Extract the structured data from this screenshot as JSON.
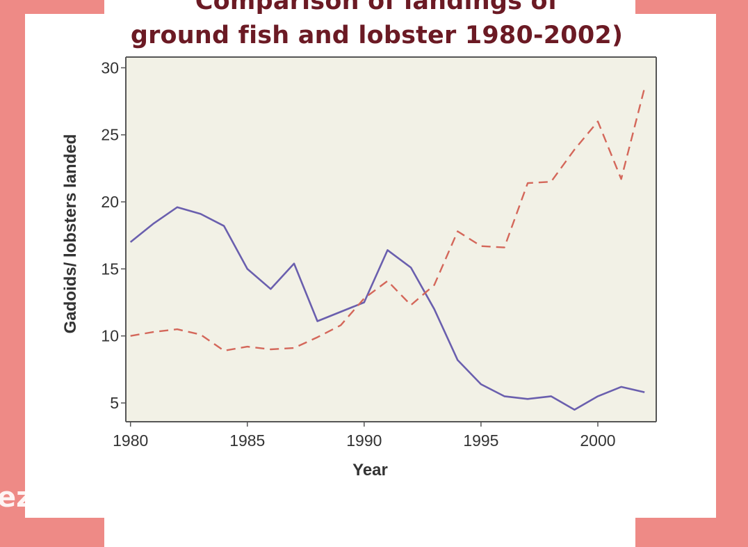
{
  "title_line1": "Comparison of landings of",
  "title_line2": "ground fish and lobster 1980-2002)",
  "watermark": "ezi",
  "colors": {
    "frame": "#ee8a86",
    "title": "#6b1a24",
    "gadoids": "#6a5fae",
    "lobsters": "#d4675a",
    "plot_bg": "#f2f1e6"
  },
  "chart_data": {
    "type": "line",
    "title": "",
    "xlabel": "Year",
    "ylabel": "Gadoids/ lobsters landed",
    "xlim": [
      1979.8,
      2002.5
    ],
    "ylim": [
      3.6,
      30.8
    ],
    "x_ticks": [
      1980,
      1985,
      1990,
      1995,
      2000
    ],
    "y_ticks": [
      5,
      10,
      15,
      20,
      25,
      30
    ],
    "grid": false,
    "x": [
      1980,
      1981,
      1982,
      1983,
      1984,
      1985,
      1986,
      1987,
      1988,
      1989,
      1990,
      1991,
      1992,
      1993,
      1994,
      1995,
      1996,
      1997,
      1998,
      1999,
      2000,
      2001,
      2002
    ],
    "series": [
      {
        "style": "solid",
        "values": [
          17.0,
          18.4,
          19.6,
          19.1,
          18.2,
          15.0,
          13.5,
          15.4,
          11.1,
          11.8,
          12.5,
          16.4,
          15.1,
          12.0,
          8.2,
          6.4,
          5.5,
          5.3,
          5.5,
          4.5,
          5.5,
          6.2,
          5.8
        ]
      },
      {
        "style": "dashed",
        "values": [
          10.0,
          10.3,
          10.5,
          10.1,
          8.9,
          9.2,
          9.0,
          9.1,
          9.9,
          10.8,
          12.8,
          14.1,
          12.3,
          13.8,
          17.8,
          16.7,
          16.6,
          21.4,
          21.5,
          23.9,
          26.0,
          21.7,
          28.5
        ]
      }
    ]
  }
}
